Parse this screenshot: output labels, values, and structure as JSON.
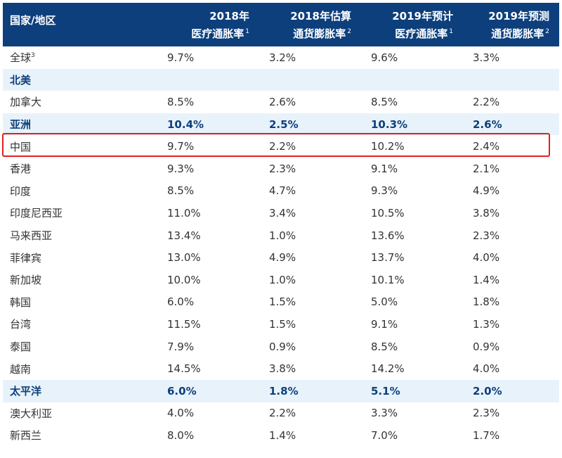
{
  "header": {
    "col0": "国家/地区",
    "col1_line1": "2018年",
    "col1_line2": "医疗通胀率",
    "col1_sup": "1",
    "col2_line1": "2018年估算",
    "col2_line2": "通货膨胀率",
    "col2_sup": "2",
    "col3_line1": "2019年预计",
    "col3_line2": "医疗通胀率",
    "col3_sup": "1",
    "col4_line1": "2019年预测",
    "col4_line2": "通货膨胀率",
    "col4_sup": "2"
  },
  "colors": {
    "header_bg": "#0d3f7c",
    "region_bg": "#e8f2fa",
    "highlight_border": "#e02020"
  },
  "rows": [
    {
      "name": "全球",
      "sup": "3",
      "type": "normal",
      "values": [
        "9.7%",
        "3.2%",
        "9.6%",
        "3.3%"
      ]
    },
    {
      "name": "北美",
      "type": "region",
      "values": [
        "",
        "",
        "",
        ""
      ]
    },
    {
      "name": "加拿大",
      "type": "normal",
      "values": [
        "8.5%",
        "2.6%",
        "8.5%",
        "2.2%"
      ]
    },
    {
      "name": "亚洲",
      "type": "region",
      "values": [
        "10.4%",
        "2.5%",
        "10.3%",
        "2.6%"
      ]
    },
    {
      "name": "中国",
      "type": "normal",
      "highlighted": true,
      "values": [
        "9.7%",
        "2.2%",
        "10.2%",
        "2.4%"
      ]
    },
    {
      "name": "香港",
      "type": "normal",
      "values": [
        "9.3%",
        "2.3%",
        "9.1%",
        "2.1%"
      ]
    },
    {
      "name": "印度",
      "type": "normal",
      "values": [
        "8.5%",
        "4.7%",
        "9.3%",
        "4.9%"
      ]
    },
    {
      "name": "印度尼西亚",
      "type": "normal",
      "values": [
        "11.0%",
        "3.4%",
        "10.5%",
        "3.8%"
      ]
    },
    {
      "name": "马来西亚",
      "type": "normal",
      "values": [
        "13.4%",
        "1.0%",
        "13.6%",
        "2.3%"
      ]
    },
    {
      "name": "菲律宾",
      "type": "normal",
      "values": [
        "13.0%",
        "4.9%",
        "13.7%",
        "4.0%"
      ]
    },
    {
      "name": "新加坡",
      "type": "normal",
      "values": [
        "10.0%",
        "1.0%",
        "10.1%",
        "1.4%"
      ]
    },
    {
      "name": "韩国",
      "type": "normal",
      "values": [
        "6.0%",
        "1.5%",
        "5.0%",
        "1.8%"
      ]
    },
    {
      "name": "台湾",
      "type": "normal",
      "values": [
        "11.5%",
        "1.5%",
        "9.1%",
        "1.3%"
      ]
    },
    {
      "name": "泰国",
      "type": "normal",
      "values": [
        "7.9%",
        "0.9%",
        "8.5%",
        "0.9%"
      ]
    },
    {
      "name": "越南",
      "type": "normal",
      "values": [
        "14.5%",
        "3.8%",
        "14.2%",
        "4.0%"
      ]
    },
    {
      "name": "太平洋",
      "type": "region",
      "values": [
        "6.0%",
        "1.8%",
        "5.1%",
        "2.0%"
      ]
    },
    {
      "name": "澳大利亚",
      "type": "normal",
      "values": [
        "4.0%",
        "2.2%",
        "3.3%",
        "2.3%"
      ]
    },
    {
      "name": "新西兰",
      "type": "normal",
      "values": [
        "8.0%",
        "1.4%",
        "7.0%",
        "1.7%"
      ]
    }
  ]
}
